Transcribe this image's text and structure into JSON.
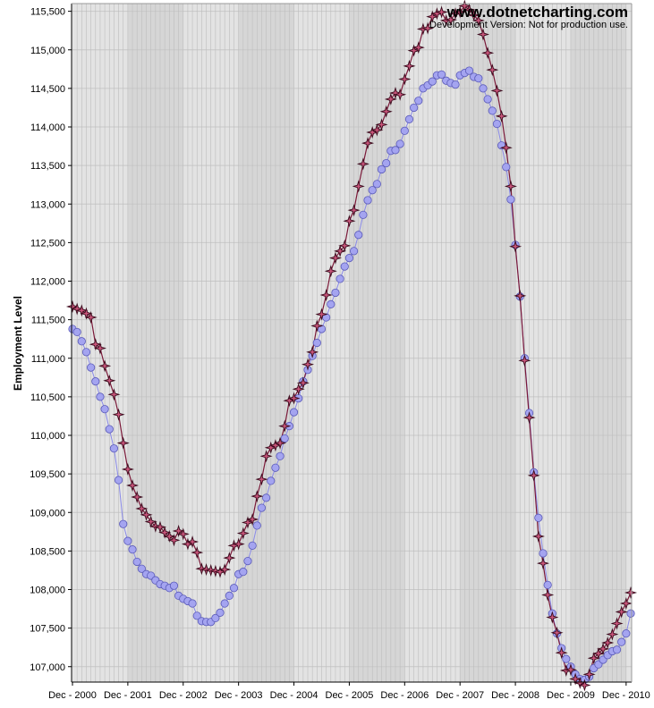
{
  "watermark": {
    "url": "www.dotnetcharting.com",
    "note": "Development Version: Not for production use."
  },
  "chart_data": {
    "type": "line",
    "xlabel": "",
    "ylabel": "Employment Level",
    "ylim": [
      106800,
      115600
    ],
    "yticks": [
      107000,
      107500,
      108000,
      108500,
      109000,
      109500,
      110000,
      110500,
      111000,
      111500,
      112000,
      112500,
      113000,
      113500,
      114000,
      114500,
      115000,
      115500
    ],
    "ytick_labels": [
      "107,000",
      "107,500",
      "108,000",
      "108,500",
      "109,000",
      "109,500",
      "110,000",
      "110,500",
      "111,000",
      "111,500",
      "112,000",
      "112,500",
      "113,000",
      "113,500",
      "114,000",
      "114,500",
      "115,000",
      "115,500"
    ],
    "xtick_labels": [
      "Dec - 2000",
      "Dec - 2001",
      "Dec - 2002",
      "Dec - 2003",
      "Dec - 2004",
      "Dec - 2005",
      "Dec - 2006",
      "Dec - 2007",
      "Dec - 2008",
      "Dec - 2009",
      "Dec - 2010"
    ],
    "x_start": "Dec - 2000",
    "x_end": "Dec - 2010",
    "grid": true,
    "legend": "none",
    "series": [
      {
        "marker": "circle",
        "color": "#a4a4f0",
        "line_color": "#8a8ae8",
        "values": [
          111380,
          111340,
          111220,
          111080,
          110880,
          110700,
          110500,
          110340,
          110080,
          109830,
          109420,
          108850,
          108630,
          108520,
          108360,
          108270,
          108200,
          108180,
          108120,
          108070,
          108050,
          108020,
          108050,
          107920,
          107880,
          107850,
          107820,
          107660,
          107590,
          107580,
          107580,
          107630,
          107700,
          107820,
          107920,
          108020,
          108200,
          108230,
          108370,
          108570,
          108830,
          109060,
          109190,
          109410,
          109580,
          109730,
          109960,
          110120,
          110300,
          110480,
          110700,
          110850,
          111030,
          111200,
          111380,
          111530,
          111700,
          111850,
          112030,
          112190,
          112300,
          112390,
          112600,
          112860,
          113050,
          113180,
          113260,
          113450,
          113530,
          113690,
          113700,
          113780,
          113950,
          114100,
          114250,
          114340,
          114500,
          114540,
          114590,
          114670,
          114680,
          114600,
          114570,
          114550,
          114670,
          114700,
          114730,
          114650,
          114630,
          114500,
          114360,
          114210,
          114040,
          113760,
          113480,
          113060,
          112470,
          111800,
          111000,
          110290,
          109520,
          108930,
          108470,
          108060,
          107690,
          107430,
          107240,
          107100,
          107000,
          106900,
          106840,
          106830,
          106870,
          106980,
          107030,
          107090,
          107150,
          107200,
          107220,
          107320,
          107430,
          107690
        ]
      },
      {
        "marker": "star",
        "color": "#c8557a",
        "line_color": "#7a1838",
        "values": [
          111670,
          111640,
          111620,
          111580,
          111530,
          111180,
          111130,
          110900,
          110710,
          110530,
          110270,
          109900,
          109560,
          109350,
          109200,
          109050,
          108970,
          108880,
          108820,
          108810,
          108740,
          108690,
          108640,
          108760,
          108720,
          108590,
          108620,
          108480,
          108270,
          108260,
          108250,
          108240,
          108230,
          108260,
          108410,
          108570,
          108590,
          108730,
          108870,
          108910,
          109210,
          109430,
          109730,
          109840,
          109870,
          109900,
          110120,
          110450,
          110480,
          110600,
          110680,
          110920,
          111080,
          111420,
          111570,
          111820,
          112130,
          112300,
          112390,
          112460,
          112780,
          112920,
          113230,
          113520,
          113790,
          113930,
          113960,
          114030,
          114200,
          114360,
          114440,
          114420,
          114620,
          114790,
          114990,
          115030,
          115270,
          115280,
          115430,
          115470,
          115490,
          115380,
          115390,
          115470,
          115490,
          115570,
          115520,
          115450,
          115380,
          115200,
          114960,
          114740,
          114470,
          114140,
          113730,
          113230,
          112450,
          111810,
          110970,
          110230,
          109480,
          108690,
          108340,
          107930,
          107640,
          107440,
          107180,
          106950,
          106960,
          106840,
          106790,
          106760,
          106900,
          107110,
          107170,
          107230,
          107310,
          107420,
          107560,
          107710,
          107820,
          107960
        ]
      }
    ]
  }
}
